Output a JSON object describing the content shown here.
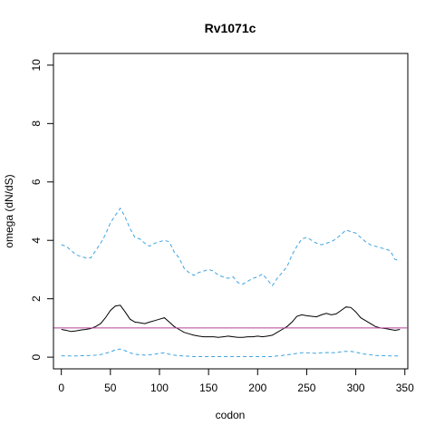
{
  "chart_data": {
    "type": "line",
    "title": "Rv1071c",
    "xlabel": "codon",
    "ylabel": "omega (dN/dS)",
    "xlim": [
      -8,
      353
    ],
    "ylim": [
      -0.4,
      10.4
    ],
    "xticks": [
      0,
      50,
      100,
      150,
      200,
      250,
      300,
      350
    ],
    "yticks": [
      0,
      2,
      4,
      6,
      8,
      10
    ],
    "grid": false,
    "reference_line": {
      "y": 1,
      "color": "#b5409a"
    },
    "series": [
      {
        "color": "#000000",
        "style": "solid",
        "x": [
          0,
          5,
          10,
          15,
          20,
          25,
          30,
          35,
          40,
          45,
          50,
          55,
          60,
          65,
          70,
          75,
          80,
          85,
          90,
          95,
          100,
          105,
          110,
          115,
          120,
          125,
          130,
          135,
          140,
          145,
          150,
          155,
          160,
          165,
          170,
          175,
          180,
          185,
          190,
          195,
          200,
          205,
          210,
          215,
          220,
          225,
          230,
          235,
          240,
          245,
          250,
          255,
          260,
          265,
          270,
          275,
          280,
          285,
          290,
          295,
          300,
          305,
          310,
          315,
          320,
          325,
          330,
          335,
          340,
          345
        ],
        "y": [
          0.95,
          0.92,
          0.88,
          0.9,
          0.93,
          0.95,
          0.98,
          1.05,
          1.15,
          1.35,
          1.6,
          1.75,
          1.78,
          1.55,
          1.3,
          1.2,
          1.18,
          1.15,
          1.2,
          1.25,
          1.3,
          1.35,
          1.2,
          1.05,
          0.95,
          0.85,
          0.8,
          0.75,
          0.72,
          0.7,
          0.7,
          0.7,
          0.68,
          0.7,
          0.72,
          0.7,
          0.68,
          0.68,
          0.7,
          0.7,
          0.72,
          0.7,
          0.72,
          0.75,
          0.85,
          0.95,
          1.05,
          1.2,
          1.4,
          1.45,
          1.42,
          1.4,
          1.38,
          1.45,
          1.5,
          1.45,
          1.48,
          1.6,
          1.72,
          1.7,
          1.55,
          1.35,
          1.25,
          1.15,
          1.05,
          1.0,
          0.98,
          0.95,
          0.92,
          0.95
        ]
      },
      {
        "color": "#3fa4e0",
        "style": "dashed",
        "x": [
          0,
          5,
          10,
          15,
          20,
          25,
          30,
          35,
          40,
          45,
          50,
          55,
          60,
          65,
          70,
          75,
          80,
          85,
          90,
          95,
          100,
          105,
          110,
          115,
          120,
          125,
          130,
          135,
          140,
          145,
          150,
          155,
          160,
          165,
          170,
          175,
          180,
          185,
          190,
          195,
          200,
          205,
          210,
          215,
          220,
          225,
          230,
          235,
          240,
          245,
          250,
          255,
          260,
          265,
          270,
          275,
          280,
          285,
          290,
          295,
          300,
          305,
          310,
          315,
          320,
          325,
          330,
          335,
          340,
          345
        ],
        "y": [
          3.85,
          3.8,
          3.65,
          3.5,
          3.45,
          3.4,
          3.4,
          3.65,
          3.9,
          4.2,
          4.6,
          4.85,
          5.1,
          4.8,
          4.4,
          4.1,
          4.05,
          3.9,
          3.8,
          3.9,
          3.95,
          4.0,
          3.95,
          3.6,
          3.4,
          3.05,
          2.9,
          2.8,
          2.9,
          2.95,
          3.0,
          2.95,
          2.8,
          2.75,
          2.7,
          2.75,
          2.55,
          2.5,
          2.6,
          2.7,
          2.75,
          2.85,
          2.65,
          2.45,
          2.7,
          2.9,
          3.1,
          3.5,
          3.8,
          4.05,
          4.1,
          4.0,
          3.9,
          3.85,
          3.9,
          3.95,
          4.05,
          4.2,
          4.35,
          4.3,
          4.25,
          4.1,
          3.95,
          3.85,
          3.8,
          3.75,
          3.7,
          3.65,
          3.35,
          3.3
        ]
      },
      {
        "color": "#3fa4e0",
        "style": "dashed",
        "x": [
          0,
          5,
          10,
          15,
          20,
          25,
          30,
          35,
          40,
          45,
          50,
          55,
          60,
          65,
          70,
          75,
          80,
          85,
          90,
          95,
          100,
          105,
          110,
          115,
          120,
          125,
          130,
          135,
          140,
          145,
          150,
          155,
          160,
          165,
          170,
          175,
          180,
          185,
          190,
          195,
          200,
          205,
          210,
          215,
          220,
          225,
          230,
          235,
          240,
          245,
          250,
          255,
          260,
          265,
          270,
          275,
          280,
          285,
          290,
          295,
          300,
          305,
          310,
          315,
          320,
          325,
          330,
          335,
          340,
          345
        ],
        "y": [
          0.05,
          0.04,
          0.04,
          0.04,
          0.05,
          0.05,
          0.06,
          0.07,
          0.09,
          0.13,
          0.18,
          0.25,
          0.28,
          0.22,
          0.15,
          0.1,
          0.08,
          0.07,
          0.08,
          0.1,
          0.13,
          0.15,
          0.1,
          0.07,
          0.05,
          0.04,
          0.03,
          0.02,
          0.02,
          0.02,
          0.02,
          0.02,
          0.02,
          0.02,
          0.02,
          0.02,
          0.02,
          0.02,
          0.02,
          0.02,
          0.02,
          0.02,
          0.02,
          0.02,
          0.04,
          0.06,
          0.08,
          0.1,
          0.13,
          0.15,
          0.15,
          0.14,
          0.13,
          0.15,
          0.16,
          0.15,
          0.16,
          0.18,
          0.2,
          0.2,
          0.17,
          0.13,
          0.1,
          0.08,
          0.06,
          0.05,
          0.05,
          0.04,
          0.04,
          0.04
        ]
      }
    ]
  }
}
